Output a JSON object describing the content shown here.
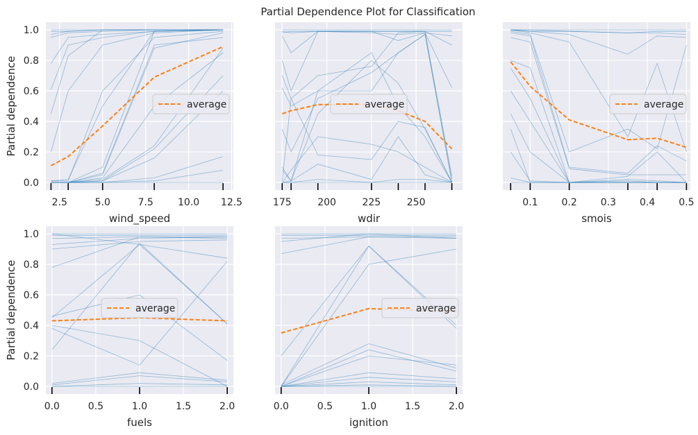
{
  "chart_data": {
    "type": "line",
    "title": "Partial Dependence Plot for Classification",
    "ylabel": "Partial dependence",
    "legend_label": "average",
    "colors": {
      "ice": "#1f77b4",
      "average": "#ff7f0e",
      "background": "#eaeaf2",
      "grid": "#ffffff"
    },
    "panels": [
      {
        "xlabel": "wind_speed",
        "xlim": [
          1.7,
          12.6
        ],
        "xticks": [
          2.5,
          5.0,
          7.5,
          10.0,
          12.5
        ],
        "xtick_labels": [
          "2.5",
          "5.0",
          "7.5",
          "10.0",
          "12.5"
        ],
        "ylim": [
          -0.05,
          1.05
        ],
        "yticks": [
          0.0,
          0.2,
          0.4,
          0.6,
          0.8,
          1.0
        ],
        "ytick_labels": [
          "0.0",
          "0.2",
          "0.4",
          "0.6",
          "0.8",
          "1.0"
        ],
        "show_ytick_labels": true,
        "deciles": [
          2,
          3,
          5,
          8,
          12
        ],
        "legend_pos": "center-right",
        "x": [
          2,
          3,
          5,
          8,
          12
        ],
        "average": [
          0.11,
          0.17,
          0.37,
          0.69,
          0.89
        ],
        "ice": [
          [
            1.0,
            1.0,
            1.0,
            1.0,
            1.0
          ],
          [
            0.99,
            0.99,
            1.0,
            1.0,
            1.0
          ],
          [
            0.97,
            0.99,
            1.0,
            1.0,
            1.0
          ],
          [
            0.95,
            0.98,
            0.99,
            1.0,
            1.0
          ],
          [
            0.78,
            0.95,
            0.97,
            0.99,
            1.0
          ],
          [
            0.61,
            0.9,
            0.95,
            0.99,
            1.0
          ],
          [
            0.45,
            0.83,
            1.0,
            1.0,
            1.0
          ],
          [
            0.2,
            0.6,
            0.9,
            0.98,
            1.0
          ],
          [
            0.01,
            0.01,
            0.6,
            0.95,
            0.99
          ],
          [
            0.01,
            0.02,
            0.5,
            0.99,
            1.0
          ],
          [
            0.0,
            0.0,
            0.1,
            0.99,
            1.0
          ],
          [
            0.0,
            0.0,
            0.06,
            0.9,
            0.95
          ],
          [
            0.0,
            0.0,
            0.05,
            0.88,
            0.98
          ],
          [
            0.0,
            0.0,
            0.03,
            0.5,
            0.85
          ],
          [
            0.0,
            0.0,
            0.02,
            0.24,
            0.88
          ],
          [
            0.0,
            0.0,
            0.01,
            0.22,
            0.7
          ],
          [
            0.0,
            0.0,
            0.01,
            0.16,
            0.6
          ],
          [
            0.0,
            0.0,
            0.0,
            0.03,
            0.17
          ],
          [
            0.0,
            0.0,
            0.0,
            0.01,
            0.08
          ],
          [
            0.0,
            0.0,
            0.0,
            0.0,
            0.0
          ]
        ]
      },
      {
        "xlabel": "wdir",
        "xlim": [
          171,
          276
        ],
        "xticks": [
          175,
          200,
          225,
          250
        ],
        "xtick_labels": [
          "175",
          "200",
          "225",
          "250"
        ],
        "ylim": [
          -0.05,
          1.05
        ],
        "yticks": [
          0.0,
          0.2,
          0.4,
          0.6,
          0.8,
          1.0
        ],
        "ytick_labels": [
          "0.0",
          "0.2",
          "0.4",
          "0.6",
          "0.8",
          "1.0"
        ],
        "show_ytick_labels": false,
        "deciles": [
          175,
          180,
          195,
          225,
          240,
          255,
          270
        ],
        "legend_pos": "center",
        "x": [
          175,
          180,
          195,
          225,
          240,
          255,
          270
        ],
        "average": [
          0.45,
          0.47,
          0.51,
          0.51,
          0.47,
          0.4,
          0.22
        ],
        "ice": [
          [
            1.0,
            1.0,
            1.0,
            1.0,
            1.0,
            1.0,
            1.0
          ],
          [
            0.99,
            0.98,
            0.99,
            0.99,
            0.99,
            0.99,
            0.99
          ],
          [
            0.98,
            0.99,
            0.99,
            0.98,
            0.97,
            0.98,
            0.96
          ],
          [
            0.96,
            0.85,
            0.99,
            0.99,
            0.99,
            0.99,
            0.9
          ],
          [
            0.8,
            0.6,
            0.99,
            0.99,
            0.93,
            0.98,
            0.62
          ],
          [
            0.7,
            0.55,
            0.7,
            0.76,
            0.98,
            0.99,
            0.04
          ],
          [
            0.62,
            0.5,
            0.6,
            0.6,
            0.85,
            0.97,
            0.02
          ],
          [
            0.35,
            0.2,
            0.55,
            0.72,
            0.85,
            0.97,
            0.0
          ],
          [
            0.1,
            0.01,
            0.45,
            0.8,
            0.65,
            0.35,
            0.0
          ],
          [
            0.08,
            0.01,
            0.6,
            0.85,
            0.5,
            0.3,
            0.0
          ],
          [
            0.01,
            0.55,
            0.18,
            0.15,
            0.4,
            0.36,
            0.0
          ],
          [
            0.0,
            0.08,
            0.3,
            0.25,
            0.2,
            0.1,
            0.0
          ],
          [
            0.0,
            0.01,
            0.12,
            0.02,
            0.3,
            0.05,
            0.0
          ],
          [
            0.0,
            0.0,
            0.02,
            0.0,
            0.02,
            0.02,
            0.0
          ],
          [
            0.0,
            0.0,
            0.0,
            0.0,
            0.0,
            0.0,
            0.0
          ]
        ]
      },
      {
        "xlabel": "smois",
        "xlim": [
          0.03,
          0.51
        ],
        "xticks": [
          0.1,
          0.2,
          0.3,
          0.4,
          0.5
        ],
        "xtick_labels": [
          "0.1",
          "0.2",
          "0.3",
          "0.4",
          "0.5"
        ],
        "ylim": [
          -0.05,
          1.05
        ],
        "yticks": [
          0.0,
          0.2,
          0.4,
          0.6,
          0.8,
          1.0
        ],
        "ytick_labels": [
          "0.0",
          "0.2",
          "0.4",
          "0.6",
          "0.8",
          "1.0"
        ],
        "show_ytick_labels": false,
        "deciles": [
          0.05,
          0.1,
          0.2,
          0.35,
          0.425,
          0.5
        ],
        "legend_pos": "center-right",
        "x": [
          0.05,
          0.1,
          0.2,
          0.35,
          0.425,
          0.5
        ],
        "average": [
          0.79,
          0.63,
          0.41,
          0.28,
          0.29,
          0.23
        ],
        "ice": [
          [
            1.0,
            1.0,
            1.0,
            1.0,
            1.0,
            1.0
          ],
          [
            1.0,
            1.0,
            0.99,
            0.98,
            0.98,
            0.97
          ],
          [
            1.0,
            0.99,
            0.99,
            0.98,
            0.99,
            0.99
          ],
          [
            1.0,
            0.99,
            0.97,
            0.84,
            0.96,
            0.95
          ],
          [
            1.0,
            0.98,
            0.92,
            0.3,
            0.78,
            0.2
          ],
          [
            0.99,
            0.97,
            0.2,
            0.35,
            0.22,
            0.9
          ],
          [
            0.98,
            0.96,
            0.1,
            0.06,
            0.24,
            0.14
          ],
          [
            0.95,
            0.92,
            0.09,
            0.05,
            0.05,
            0.05
          ],
          [
            0.8,
            0.75,
            0.0,
            0.04,
            0.2,
            0.0
          ],
          [
            0.75,
            0.55,
            0.0,
            0.02,
            0.01,
            0.0
          ],
          [
            0.6,
            0.4,
            0.0,
            0.01,
            0.0,
            0.0
          ],
          [
            0.45,
            0.2,
            0.0,
            0.0,
            0.0,
            0.0
          ],
          [
            0.35,
            0.0,
            0.0,
            0.0,
            0.0,
            0.0
          ],
          [
            0.2,
            0.01,
            0.0,
            0.0,
            0.0,
            0.0
          ],
          [
            0.03,
            0.0,
            0.0,
            0.0,
            0.0,
            0.0
          ],
          [
            0.0,
            0.0,
            0.0,
            0.0,
            0.0,
            0.0
          ]
        ]
      },
      {
        "xlabel": "fuels",
        "xlim": [
          -0.07,
          2.07
        ],
        "xticks": [
          0.0,
          0.5,
          1.0,
          1.5,
          2.0
        ],
        "xtick_labels": [
          "0.0",
          "0.5",
          "1.0",
          "1.5",
          "2.0"
        ],
        "ylim": [
          -0.05,
          1.05
        ],
        "yticks": [
          0.0,
          0.2,
          0.4,
          0.6,
          0.8,
          1.0
        ],
        "ytick_labels": [
          "0.0",
          "0.2",
          "0.4",
          "0.6",
          "0.8",
          "1.0"
        ],
        "show_ytick_labels": true,
        "deciles": [
          0,
          1,
          2
        ],
        "legend_pos": "center",
        "x": [
          0,
          1,
          2
        ],
        "average": [
          0.43,
          0.45,
          0.43
        ],
        "ice": [
          [
            1.0,
            1.0,
            1.0
          ],
          [
            0.99,
            0.99,
            0.99
          ],
          [
            0.97,
            0.98,
            0.98
          ],
          [
            0.93,
            0.97,
            0.98
          ],
          [
            0.9,
            0.95,
            0.96
          ],
          [
            1.0,
            0.93,
            0.84
          ],
          [
            0.78,
            0.98,
            0.97
          ],
          [
            0.45,
            0.93,
            0.41
          ],
          [
            0.46,
            0.6,
            0.17
          ],
          [
            0.24,
            0.94,
            0.41
          ],
          [
            0.38,
            0.14,
            0.82
          ],
          [
            0.4,
            0.3,
            0.0
          ],
          [
            0.02,
            0.09,
            0.04
          ],
          [
            0.01,
            0.07,
            0.03
          ],
          [
            0.0,
            0.02,
            0.01
          ],
          [
            0.0,
            0.0,
            0.0
          ]
        ]
      },
      {
        "xlabel": "ignition",
        "xlim": [
          -0.07,
          2.07
        ],
        "xticks": [
          0.0,
          0.5,
          1.0,
          1.5,
          2.0
        ],
        "xtick_labels": [
          "0.0",
          "0.5",
          "1.0",
          "1.5",
          "2.0"
        ],
        "ylim": [
          -0.05,
          1.05
        ],
        "yticks": [
          0.0,
          0.2,
          0.4,
          0.6,
          0.8,
          1.0
        ],
        "ytick_labels": [
          "0.0",
          "0.2",
          "0.4",
          "0.6",
          "0.8",
          "1.0"
        ],
        "show_ytick_labels": false,
        "deciles": [
          0,
          1,
          2
        ],
        "legend_pos": "center-right",
        "x": [
          0,
          1,
          2
        ],
        "average": [
          0.35,
          0.51,
          0.49
        ],
        "ice": [
          [
            1.0,
            1.0,
            1.0
          ],
          [
            0.99,
            0.99,
            0.99
          ],
          [
            0.97,
            0.98,
            0.98
          ],
          [
            0.95,
            1.0,
            0.97
          ],
          [
            0.87,
            0.98,
            0.97
          ],
          [
            0.2,
            0.92,
            0.4
          ],
          [
            0.0,
            0.8,
            0.9
          ],
          [
            0.0,
            0.92,
            0.38
          ],
          [
            0.01,
            0.28,
            0.12
          ],
          [
            0.0,
            0.24,
            0.1
          ],
          [
            0.0,
            0.2,
            0.14
          ],
          [
            0.0,
            0.09,
            0.05
          ],
          [
            0.0,
            0.06,
            0.03
          ],
          [
            0.0,
            0.03,
            0.01
          ],
          [
            0.0,
            0.01,
            0.0
          ],
          [
            0.0,
            0.0,
            0.0
          ]
        ]
      }
    ]
  }
}
